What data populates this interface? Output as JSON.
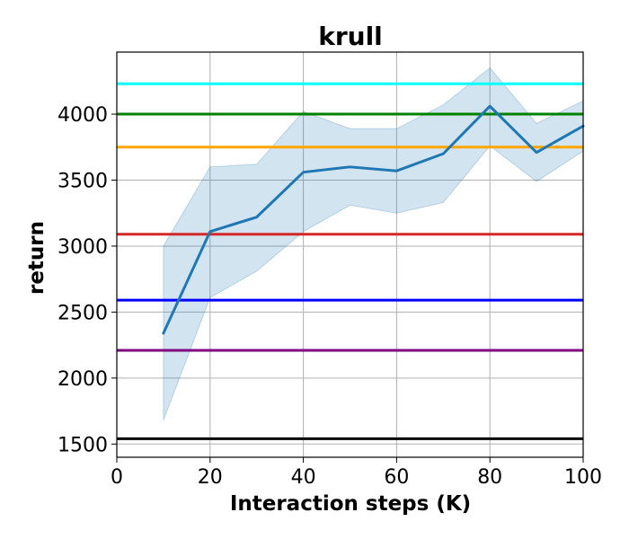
{
  "chart_data": {
    "type": "line",
    "title": "krull",
    "xlabel": "Interaction steps (K)",
    "ylabel": "return",
    "xlim": [
      0,
      100
    ],
    "ylim": [
      1400,
      4470
    ],
    "xticks": [
      0,
      20,
      40,
      60,
      80,
      100
    ],
    "yticks": [
      1500,
      2000,
      2500,
      3000,
      3500,
      4000
    ],
    "grid": true,
    "series": [
      {
        "color": "#1f77b4",
        "x": [
          10,
          20,
          30,
          40,
          50,
          60,
          70,
          80,
          90,
          100
        ],
        "values": [
          2340,
          3110,
          3220,
          3560,
          3600,
          3570,
          3700,
          4060,
          3710,
          3910
        ],
        "lower": [
          1680,
          2610,
          2810,
          3110,
          3310,
          3250,
          3330,
          3760,
          3490,
          3720
        ],
        "upper": [
          3000,
          3600,
          3620,
          4020,
          3890,
          3890,
          4070,
          4350,
          3930,
          4100
        ]
      }
    ],
    "reference_lines": [
      {
        "color": "#00ffff",
        "value": 4230
      },
      {
        "color": "#008000",
        "value": 4000
      },
      {
        "color": "#ffa500",
        "value": 3750
      },
      {
        "color": "#d62728",
        "value": 3090
      },
      {
        "color": "#0000ff",
        "value": 2590
      },
      {
        "color": "#800080",
        "value": 2210
      },
      {
        "color": "#000000",
        "value": 1540
      }
    ]
  }
}
